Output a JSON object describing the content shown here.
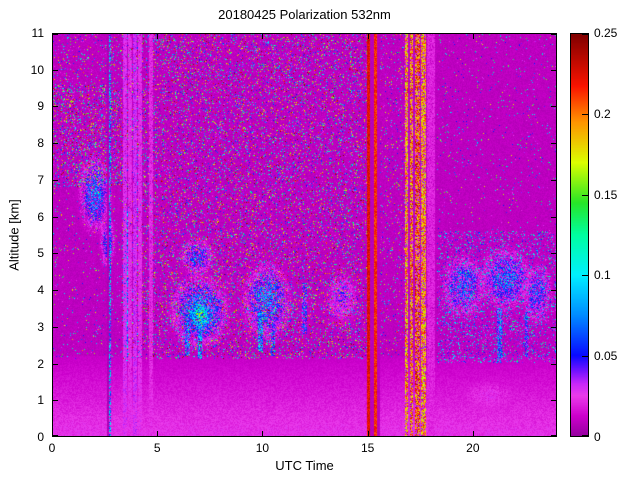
{
  "figure": {
    "background": "#ffffff",
    "frame_color": "#000000",
    "text_color": "#000000"
  },
  "chart_data": {
    "type": "heatmap",
    "title": "20180425 Polarization 532nm",
    "xlabel": "UTC Time",
    "ylabel": "Altitude [km]",
    "xlim": [
      0,
      24
    ],
    "ylim": [
      0,
      11
    ],
    "xticks": [
      0,
      5,
      10,
      15,
      20
    ],
    "yticks": [
      0,
      1,
      2,
      3,
      4,
      5,
      6,
      7,
      8,
      9,
      10,
      11
    ],
    "colorbar": {
      "min": 0,
      "max": 0.25,
      "tick_values": [
        0,
        0.05,
        0.1,
        0.15,
        0.2,
        0.25
      ],
      "tick_labels": [
        "0",
        "0.05",
        "0.1",
        "0.15",
        "0.2",
        "0.25"
      ]
    },
    "colormap_stops": [
      [
        0.0,
        150,
        0,
        160
      ],
      [
        0.05,
        205,
        0,
        205
      ],
      [
        0.1,
        235,
        60,
        235
      ],
      [
        0.13,
        200,
        40,
        250
      ],
      [
        0.16,
        120,
        20,
        255
      ],
      [
        0.2,
        10,
        10,
        255
      ],
      [
        0.3,
        0,
        140,
        255
      ],
      [
        0.4,
        0,
        240,
        255
      ],
      [
        0.5,
        0,
        255,
        160
      ],
      [
        0.58,
        40,
        230,
        40
      ],
      [
        0.68,
        220,
        255,
        0
      ],
      [
        0.78,
        255,
        150,
        0
      ],
      [
        0.87,
        250,
        20,
        0
      ],
      [
        1.0,
        128,
        0,
        0
      ]
    ],
    "background_field": {
      "base_value": 0.008,
      "noise": 0.006
    },
    "boundary_layer": {
      "top_km": 2.2,
      "value": 0.024,
      "noise_frac": 0.45
    },
    "speckle_regions": [
      {
        "x": [
          3.3,
          15.0
        ],
        "y": [
          2.1,
          11
        ],
        "density": 0.22,
        "max": 0.25
      },
      {
        "x": [
          0,
          3.3
        ],
        "y": [
          6.8,
          9.6
        ],
        "density": 0.3,
        "max": 0.25
      },
      {
        "x": [
          0,
          3.3
        ],
        "y": [
          9.6,
          11
        ],
        "density": 0.12,
        "max": 0.22
      },
      {
        "x": [
          0,
          3.3
        ],
        "y": [
          2.1,
          6.8
        ],
        "density": 0.05,
        "max": 0.2
      },
      {
        "x": [
          15.6,
          16.8
        ],
        "y": [
          2.1,
          11
        ],
        "density": 0.1,
        "max": 0.22
      },
      {
        "x": [
          18.3,
          24
        ],
        "y": [
          2.0,
          5.6
        ],
        "density": 0.28,
        "max": 0.14
      },
      {
        "x": [
          18.3,
          24
        ],
        "y": [
          5.6,
          11
        ],
        "density": 0.04,
        "max": 0.18
      }
    ],
    "clouds": [
      {
        "cx": 2.0,
        "cy": 6.6,
        "rx": 0.8,
        "ry": 1.1,
        "value": 0.07
      },
      {
        "cx": 2.6,
        "cy": 5.3,
        "rx": 0.4,
        "ry": 0.8,
        "value": 0.05
      },
      {
        "cx": 7.0,
        "cy": 3.4,
        "rx": 1.4,
        "ry": 1.0,
        "value": 0.08
      },
      {
        "cx": 7.0,
        "cy": 3.3,
        "rx": 0.6,
        "ry": 0.5,
        "value": 0.12
      },
      {
        "cx": 6.9,
        "cy": 4.9,
        "rx": 0.9,
        "ry": 0.6,
        "value": 0.05
      },
      {
        "cx": 10.2,
        "cy": 3.7,
        "rx": 1.2,
        "ry": 1.1,
        "value": 0.07
      },
      {
        "cx": 13.8,
        "cy": 3.8,
        "rx": 0.9,
        "ry": 0.8,
        "value": 0.035
      },
      {
        "cx": 19.6,
        "cy": 4.1,
        "rx": 1.1,
        "ry": 0.9,
        "value": 0.06
      },
      {
        "cx": 21.6,
        "cy": 4.3,
        "rx": 1.3,
        "ry": 0.9,
        "value": 0.06
      },
      {
        "cx": 23.1,
        "cy": 3.9,
        "rx": 0.8,
        "ry": 0.9,
        "value": 0.05
      }
    ],
    "streaks": [
      {
        "x": 3.5,
        "y": [
          2.0,
          6.2
        ],
        "w": 0.1,
        "value": 0.07
      },
      {
        "x": 6.4,
        "y": [
          2.2,
          3.2
        ],
        "w": 0.12,
        "value": 0.07
      },
      {
        "x": 7.0,
        "y": [
          2.1,
          3.0
        ],
        "w": 0.1,
        "value": 0.08
      },
      {
        "x": 9.9,
        "y": [
          2.3,
          3.4
        ],
        "w": 0.12,
        "value": 0.07
      },
      {
        "x": 10.5,
        "y": [
          2.2,
          3.1
        ],
        "w": 0.1,
        "value": 0.06
      },
      {
        "x": 12.0,
        "y": [
          2.8,
          4.2
        ],
        "w": 0.1,
        "value": 0.05
      },
      {
        "x": 21.3,
        "y": [
          2.0,
          3.5
        ],
        "w": 0.1,
        "value": 0.06
      },
      {
        "x": 22.6,
        "y": [
          2.2,
          3.4
        ],
        "w": 0.08,
        "value": 0.05
      }
    ],
    "pink_patches": [
      {
        "cx": 20.8,
        "cy": 1.1,
        "rx": 2.2,
        "ry": 0.7,
        "value": 0.022
      },
      {
        "cx": 13.8,
        "cy": 3.6,
        "rx": 1.3,
        "ry": 1.1,
        "value": 0.016
      },
      {
        "cx": 8.0,
        "cy": 1.2,
        "rx": 4.0,
        "ry": 0.8,
        "value": 0.012
      }
    ],
    "stripes": [
      {
        "x": [
          2.56,
          2.66
        ],
        "mode": "dark",
        "value": 0.004
      },
      {
        "x": [
          2.66,
          2.78
        ],
        "mode": "speckle_bright",
        "value": 0.09
      },
      {
        "x": [
          3.35,
          3.52
        ],
        "mode": "flat",
        "value": 0.028
      },
      {
        "x": [
          3.58,
          3.78
        ],
        "mode": "flat",
        "value": 0.024
      },
      {
        "x": [
          3.82,
          4.02
        ],
        "mode": "flat",
        "value": 0.03
      },
      {
        "x": [
          4.06,
          4.26
        ],
        "mode": "flat",
        "value": 0.025
      },
      {
        "x": [
          4.6,
          4.78
        ],
        "mode": "flat",
        "value": 0.022
      },
      {
        "x": [
          15.0,
          15.14
        ],
        "mode": "maroon",
        "value": 0.235
      },
      {
        "x": [
          15.14,
          15.3
        ],
        "mode": "dark",
        "value": 0.006
      },
      {
        "x": [
          15.3,
          15.44
        ],
        "mode": "maroon",
        "value": 0.225
      },
      {
        "x": [
          15.44,
          15.6
        ],
        "mode": "dark",
        "value": 0.006
      },
      {
        "x": [
          16.78,
          16.96
        ],
        "mode": "maroon_noise",
        "value": 0.21
      },
      {
        "x": [
          17.04,
          17.2
        ],
        "mode": "maroon_noise",
        "value": 0.22
      },
      {
        "x": [
          17.28,
          17.5
        ],
        "mode": "maroon_noise",
        "value": 0.23
      },
      {
        "x": [
          17.58,
          17.78
        ],
        "mode": "maroon_noise",
        "value": 0.21
      },
      {
        "x": [
          17.85,
          18.25
        ],
        "mode": "flat",
        "value": 0.02
      }
    ]
  }
}
